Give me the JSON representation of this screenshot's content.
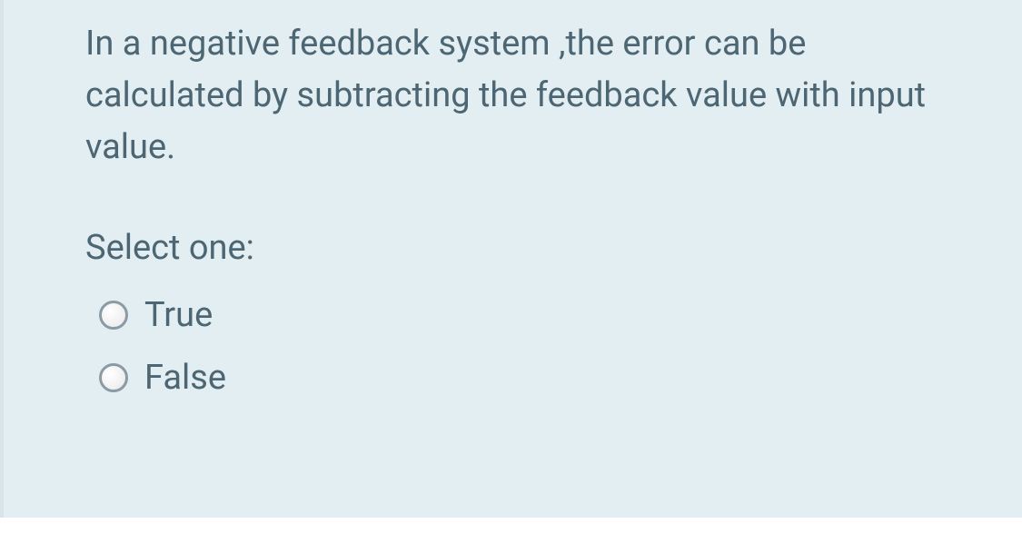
{
  "question": {
    "text": "In a negative feedback system ,the error can be calculated by subtracting  the feedback value with input value.",
    "prompt": "Select one:",
    "options": [
      {
        "label": "True",
        "value": "true"
      },
      {
        "label": "False",
        "value": "false"
      }
    ]
  },
  "colors": {
    "background": "#e2eef2",
    "text": "#4d6673",
    "border": "#d9e4e8",
    "radio_border": "#8a9ba5"
  },
  "typography": {
    "font_size": 38,
    "line_height": 1.5
  }
}
